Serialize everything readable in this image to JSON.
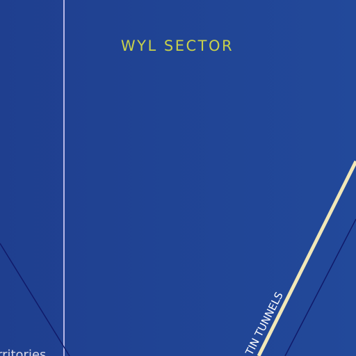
{
  "labels": {
    "sector": "WYL SECTOR",
    "road": "TIN TUNNELS",
    "region": "rritories"
  }
}
